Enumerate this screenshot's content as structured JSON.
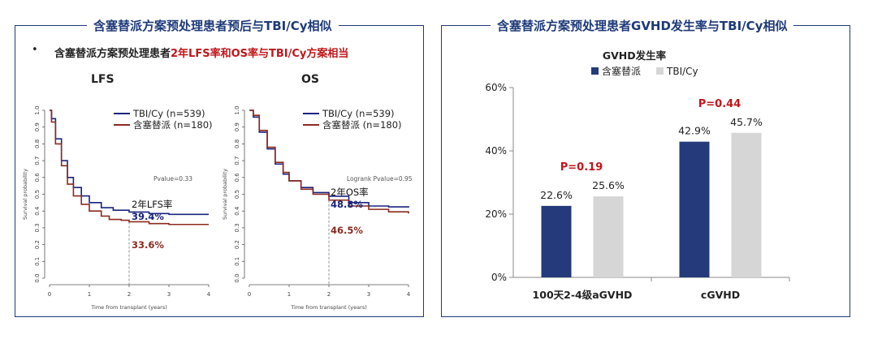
{
  "left_panel": {
    "title": "含塞替派方案预处理患者预后与TBI/Cy相似",
    "bullet": "•",
    "subtitle_prefix": "含塞替派方案预处理患者",
    "subtitle_highlight": "2年LFS率和OS率与TBI/Cy方案相当"
  },
  "right_panel": {
    "title": "含塞替派方案预处理患者GVHD发生率与TBI/Cy相似"
  },
  "chart_data": [
    {
      "type": "line",
      "title": "LFS",
      "xlabel": "Time from transplant (years)",
      "ylabel": "Survival probability",
      "xlim": [
        0,
        4
      ],
      "ylim": [
        0,
        1
      ],
      "xticks": [
        "0",
        "1",
        "2",
        "3",
        "4"
      ],
      "yticks": [
        "0.0",
        "0.1",
        "0.2",
        "0.3",
        "0.4",
        "0.5",
        "0.6",
        "0.7",
        "0.8",
        "0.9",
        "1.0"
      ],
      "pvalue": "Pvalue=0.33",
      "annotation": "2年LFS率",
      "series": [
        {
          "name": "TBI/Cy (n=539)",
          "color": "#1a237e",
          "label_at_2y": "39.4%",
          "x": [
            0,
            0.05,
            0.15,
            0.3,
            0.45,
            0.6,
            0.8,
            1.0,
            1.3,
            1.6,
            2.0,
            2.5,
            3.0,
            4.0
          ],
          "y": [
            1.0,
            0.95,
            0.83,
            0.7,
            0.6,
            0.54,
            0.49,
            0.45,
            0.42,
            0.405,
            0.394,
            0.385,
            0.38,
            0.38
          ]
        },
        {
          "name": "含塞替派 (n=180)",
          "color": "#8b2a1f",
          "label_at_2y": "33.6%",
          "x": [
            0,
            0.05,
            0.15,
            0.3,
            0.45,
            0.6,
            0.8,
            1.0,
            1.3,
            1.5,
            1.8,
            2.0,
            2.5,
            3.0,
            4.0
          ],
          "y": [
            1.0,
            0.93,
            0.8,
            0.67,
            0.56,
            0.49,
            0.44,
            0.4,
            0.37,
            0.35,
            0.345,
            0.336,
            0.325,
            0.32,
            0.32
          ]
        }
      ]
    },
    {
      "type": "line",
      "title": "OS",
      "xlabel": "Time from transplant (years)",
      "ylabel": "Survival probability",
      "xlim": [
        0,
        4
      ],
      "ylim": [
        0,
        1
      ],
      "xticks": [
        "0",
        "1",
        "2",
        "3",
        "4"
      ],
      "yticks": [
        "0.0",
        "0.1",
        "0.2",
        "0.3",
        "0.4",
        "0.5",
        "0.6",
        "0.7",
        "0.8",
        "0.9",
        "1.0"
      ],
      "pvalue": "Logrank Pvalue=0.95",
      "annotation": "2年OS率",
      "series": [
        {
          "name": "TBI/Cy (n=539)",
          "color": "#1a237e",
          "label_at_2y": "48.8%",
          "x": [
            0,
            0.1,
            0.25,
            0.45,
            0.65,
            0.85,
            1.0,
            1.3,
            1.6,
            2.0,
            2.5,
            3.0,
            3.5,
            4.0
          ],
          "y": [
            1.0,
            0.96,
            0.87,
            0.77,
            0.68,
            0.62,
            0.58,
            0.54,
            0.51,
            0.488,
            0.45,
            0.43,
            0.425,
            0.42
          ]
        },
        {
          "name": "含塞替派 (n=180)",
          "color": "#8b2a1f",
          "label_at_2y": "46.5%",
          "x": [
            0,
            0.1,
            0.25,
            0.45,
            0.65,
            0.85,
            1.0,
            1.3,
            1.6,
            2.0,
            2.5,
            3.0,
            3.5,
            4.0
          ],
          "y": [
            1.0,
            0.97,
            0.88,
            0.78,
            0.69,
            0.63,
            0.58,
            0.53,
            0.5,
            0.465,
            0.43,
            0.41,
            0.395,
            0.385
          ]
        }
      ]
    },
    {
      "type": "bar",
      "title": "GVHD发生率",
      "categories": [
        "100天2-4级aGVHD",
        "cGVHD"
      ],
      "ylim": [
        0,
        60
      ],
      "yticks": [
        "0%",
        "20%",
        "40%",
        "60%"
      ],
      "series": [
        {
          "name": "含塞替派",
          "color": "#253a7a",
          "values": [
            22.6,
            42.9
          ],
          "labels": [
            "22.6%",
            "42.9%"
          ]
        },
        {
          "name": "TBI/Cy",
          "color": "#d6d6d6",
          "values": [
            25.6,
            45.7
          ],
          "labels": [
            "25.6%",
            "45.7%"
          ]
        }
      ],
      "pvalues": [
        "P=0.19",
        "P=0.44"
      ]
    }
  ]
}
